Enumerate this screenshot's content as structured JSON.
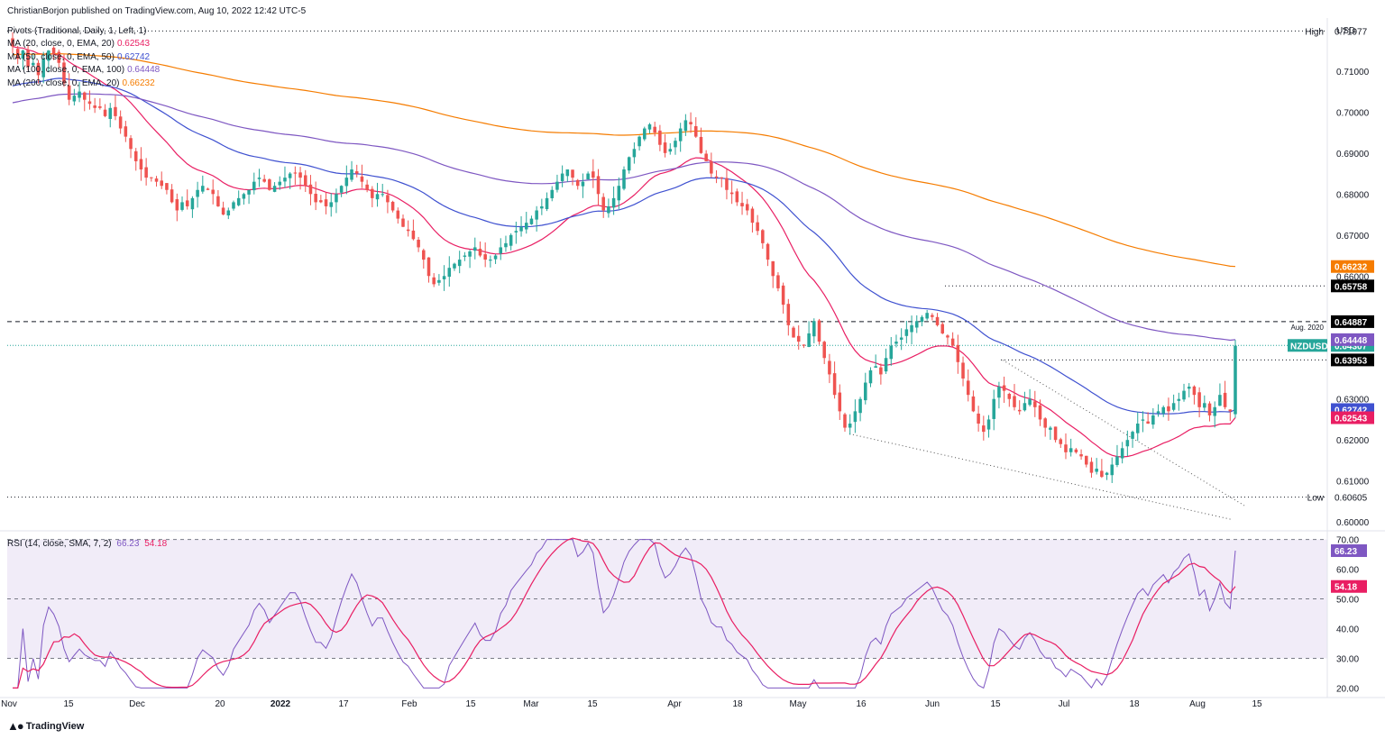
{
  "header": {
    "publisher": "ChristianBorjon published on TradingView.com, Aug 10, 2022 12:42 UTC-5",
    "pivots": "Pivots (Traditional, Daily, 1, Left, 1)",
    "indicators": [
      {
        "label": "MA (20, close, 0, EMA, 20)",
        "value": "0.62543",
        "color": "#e91e63"
      },
      {
        "label": "MA (50, close, 0, EMA, 50)",
        "value": "0.62742",
        "color": "#3f51d0"
      },
      {
        "label": "MA (100, close, 0, EMA, 100)",
        "value": "0.64448",
        "color": "#7e57c2"
      },
      {
        "label": "MA (200, close, 0, EMA, 20)",
        "value": "0.66232",
        "color": "#f57c00"
      }
    ],
    "rsi_label": "RSI (14, close, SMA, 7, 2)",
    "rsi_value": "66.23",
    "rsi_ma_value": "54.18"
  },
  "footer": {
    "brand": "TradingView",
    "logo_icon": "tradingview-logo-icon"
  },
  "chart_data": {
    "type": "candlestick",
    "symbol": "NZDUSD",
    "currency": "USD",
    "price_axis": {
      "ylim": [
        0.5985,
        0.7225
      ],
      "ticks": [
        "0.71000",
        "0.70000",
        "0.69000",
        "0.68000",
        "0.67000",
        "0.66000",
        "0.63000",
        "0.62000",
        "0.61000",
        "0.60000"
      ]
    },
    "x_ticks": [
      "Nov",
      "15",
      "Dec",
      "20",
      "2022",
      "17",
      "Feb",
      "15",
      "Mar",
      "15",
      "Apr",
      "18",
      "May",
      "16",
      "Jun",
      "15",
      "Jul",
      "18",
      "Aug",
      "15"
    ],
    "levels": [
      {
        "name": "High",
        "value": 0.71977,
        "label": "0.71977",
        "style": "dotted"
      },
      {
        "name": "",
        "value": 0.65758,
        "label": "0.65758",
        "style": "dotted"
      },
      {
        "name": "Aug. 2020",
        "value": 0.64887,
        "label": "0.64887",
        "style": "dashed"
      },
      {
        "name": "",
        "value": 0.63953,
        "label": "0.63953",
        "style": "dotted"
      },
      {
        "name": "Low",
        "value": 0.60605,
        "label": "0.60605",
        "style": "dotted"
      }
    ],
    "last_price": {
      "name": "NZDUSD",
      "value": 0.64307,
      "label": "0.64307",
      "color": "#26a69a"
    },
    "ma_labels": [
      {
        "value": 0.66232,
        "label": "0.66232",
        "color": "#f57c00"
      },
      {
        "value": 0.64448,
        "label": "0.64448",
        "color": "#7e57c2"
      },
      {
        "value": 0.62742,
        "label": "0.62742",
        "color": "#3f51d0"
      },
      {
        "value": 0.62543,
        "label": "0.62543",
        "color": "#e91e63"
      }
    ],
    "closes": [
      0.716,
      0.713,
      0.715,
      0.711,
      0.712,
      0.709,
      0.713,
      0.715,
      0.714,
      0.712,
      0.707,
      0.703,
      0.704,
      0.705,
      0.703,
      0.702,
      0.701,
      0.701,
      0.699,
      0.701,
      0.699,
      0.696,
      0.694,
      0.691,
      0.688,
      0.686,
      0.684,
      0.684,
      0.683,
      0.682,
      0.681,
      0.678,
      0.676,
      0.678,
      0.677,
      0.679,
      0.681,
      0.682,
      0.681,
      0.68,
      0.677,
      0.675,
      0.676,
      0.678,
      0.679,
      0.68,
      0.681,
      0.683,
      0.684,
      0.683,
      0.681,
      0.682,
      0.683,
      0.684,
      0.685,
      0.685,
      0.684,
      0.682,
      0.68,
      0.678,
      0.678,
      0.677,
      0.678,
      0.68,
      0.682,
      0.684,
      0.686,
      0.685,
      0.683,
      0.681,
      0.679,
      0.68,
      0.68,
      0.678,
      0.676,
      0.674,
      0.672,
      0.671,
      0.669,
      0.667,
      0.664,
      0.66,
      0.658,
      0.659,
      0.66,
      0.662,
      0.663,
      0.664,
      0.665,
      0.666,
      0.667,
      0.665,
      0.664,
      0.664,
      0.665,
      0.667,
      0.668,
      0.67,
      0.671,
      0.672,
      0.673,
      0.674,
      0.676,
      0.677,
      0.679,
      0.681,
      0.683,
      0.685,
      0.686,
      0.684,
      0.682,
      0.683,
      0.685,
      0.684,
      0.68,
      0.676,
      0.677,
      0.679,
      0.682,
      0.686,
      0.689,
      0.691,
      0.694,
      0.696,
      0.697,
      0.695,
      0.692,
      0.69,
      0.691,
      0.693,
      0.696,
      0.698,
      0.697,
      0.694,
      0.69,
      0.688,
      0.685,
      0.684,
      0.684,
      0.681,
      0.68,
      0.678,
      0.677,
      0.676,
      0.673,
      0.671,
      0.668,
      0.664,
      0.66,
      0.657,
      0.653,
      0.648,
      0.645,
      0.644,
      0.643,
      0.646,
      0.649,
      0.644,
      0.64,
      0.636,
      0.631,
      0.627,
      0.623,
      0.624,
      0.627,
      0.63,
      0.634,
      0.637,
      0.638,
      0.636,
      0.64,
      0.643,
      0.644,
      0.645,
      0.647,
      0.648,
      0.649,
      0.65,
      0.651,
      0.65,
      0.648,
      0.646,
      0.645,
      0.643,
      0.639,
      0.635,
      0.631,
      0.627,
      0.624,
      0.622,
      0.625,
      0.63,
      0.633,
      0.632,
      0.63,
      0.628,
      0.627,
      0.629,
      0.63,
      0.628,
      0.625,
      0.623,
      0.623,
      0.62,
      0.619,
      0.617,
      0.618,
      0.617,
      0.616,
      0.614,
      0.612,
      0.613,
      0.611,
      0.612,
      0.614,
      0.616,
      0.618,
      0.62,
      0.622,
      0.624,
      0.625,
      0.624,
      0.626,
      0.627,
      0.628,
      0.627,
      0.629,
      0.63,
      0.632,
      0.633,
      0.631,
      0.628,
      0.629,
      0.626,
      0.628,
      0.631,
      0.628,
      0.627,
      0.643
    ],
    "indicators": [
      {
        "name": "MA (20, close, 0, EMA, 20)",
        "period": 20,
        "color": "#e91e63"
      },
      {
        "name": "MA (50, close, 0, EMA, 50)",
        "period": 50,
        "color": "#3f51d0"
      },
      {
        "name": "MA (100, close, 0, EMA, 100)",
        "period": 100,
        "color": "#7e57c2"
      },
      {
        "name": "MA (200, close, 0, EMA, 20)",
        "period": 200,
        "color": "#f57c00"
      }
    ],
    "rsi": {
      "ylim": [
        18,
        72
      ],
      "ticks": [
        "70.00",
        "60.00",
        "50.00",
        "40.00",
        "30.00",
        "20.00"
      ],
      "band": [
        30,
        70
      ],
      "midline": 50,
      "last": {
        "value": 66.23,
        "label": "66.23",
        "color": "#7e57c2"
      },
      "ma_last": {
        "value": 54.18,
        "label": "54.18",
        "color": "#e91e63"
      }
    }
  }
}
